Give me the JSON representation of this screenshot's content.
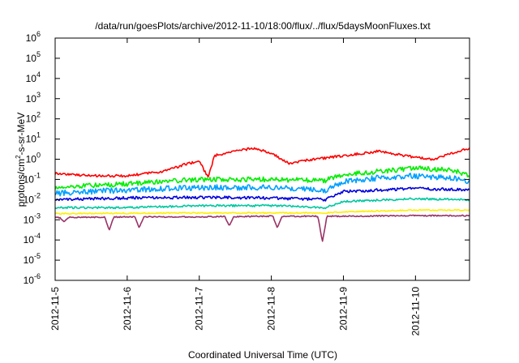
{
  "chart_data": {
    "type": "line",
    "title": "/data/run/goesPlots/archive/2012-11-10/18:00/flux/../flux/5daysMoonFluxes.txt",
    "xlabel": "Coordinated Universal Time (UTC)",
    "ylabel": {
      "base": "protons/cm",
      "sup": "2",
      "rest": "-s-sr-MeV"
    },
    "log_y": true,
    "grid": false,
    "legend": "none",
    "xlim": [
      "2012-11-05T00:00",
      "2012-11-10T18:00"
    ],
    "ylim_exponent": [
      -6,
      6
    ],
    "x_ticks": [
      "2012-11-5",
      "2012-11-6",
      "2012-11-7",
      "2012-11-8",
      "2012-11-9",
      "2012-11-10"
    ],
    "y_ticks": [
      {
        "base": "10",
        "exp": "-6"
      },
      {
        "base": "10",
        "exp": "-5"
      },
      {
        "base": "10",
        "exp": "-4"
      },
      {
        "base": "10",
        "exp": "-3"
      },
      {
        "base": "10",
        "exp": "-2"
      },
      {
        "base": "10",
        "exp": "-1"
      },
      {
        "base": "10",
        "exp": "0"
      },
      {
        "base": "10",
        "exp": "1"
      },
      {
        "base": "10",
        "exp": "2"
      },
      {
        "base": "10",
        "exp": "3"
      },
      {
        "base": "10",
        "exp": "4"
      },
      {
        "base": "10",
        "exp": "5"
      },
      {
        "base": "10",
        "exp": "6"
      }
    ],
    "series": [
      {
        "color": "#ff0000",
        "noise": 0.06,
        "dips": [],
        "points": [
          [
            "2012-11-05T00:00",
            0.2
          ],
          [
            "2012-11-05T12:00",
            0.15
          ],
          [
            "2012-11-06T00:00",
            0.15
          ],
          [
            "2012-11-06T12:00",
            0.25
          ],
          [
            "2012-11-06T20:00",
            0.6
          ],
          [
            "2012-11-07T00:00",
            0.8
          ],
          [
            "2012-11-07T03:00",
            0.12
          ],
          [
            "2012-11-07T05:00",
            1.5
          ],
          [
            "2012-11-07T12:00",
            2.5
          ],
          [
            "2012-11-07T18:00",
            3.5
          ],
          [
            "2012-11-08T00:00",
            2.0
          ],
          [
            "2012-11-08T06:00",
            0.6
          ],
          [
            "2012-11-08T12:00",
            0.9
          ],
          [
            "2012-11-09T00:00",
            1.5
          ],
          [
            "2012-11-09T12:00",
            2.5
          ],
          [
            "2012-11-10T00:00",
            1.2
          ],
          [
            "2012-11-10T06:00",
            1.0
          ],
          [
            "2012-11-10T12:00",
            2.0
          ],
          [
            "2012-11-10T18:00",
            3.5
          ]
        ]
      },
      {
        "color": "#00ee00",
        "noise": 0.12,
        "dips": [],
        "points": [
          [
            "2012-11-05T00:00",
            0.04
          ],
          [
            "2012-11-05T12:00",
            0.05
          ],
          [
            "2012-11-06T00:00",
            0.06
          ],
          [
            "2012-11-06T12:00",
            0.08
          ],
          [
            "2012-11-07T00:00",
            0.1
          ],
          [
            "2012-11-08T00:00",
            0.1
          ],
          [
            "2012-11-08T18:00",
            0.09
          ],
          [
            "2012-11-09T00:00",
            0.18
          ],
          [
            "2012-11-09T12:00",
            0.25
          ],
          [
            "2012-11-10T00:00",
            0.35
          ],
          [
            "2012-11-10T12:00",
            0.3
          ],
          [
            "2012-11-10T18:00",
            0.15
          ]
        ]
      },
      {
        "color": "#00a0ff",
        "noise": 0.14,
        "dips": [],
        "points": [
          [
            "2012-11-05T00:00",
            0.02
          ],
          [
            "2012-11-05T12:00",
            0.025
          ],
          [
            "2012-11-06T00:00",
            0.03
          ],
          [
            "2012-11-07T00:00",
            0.04
          ],
          [
            "2012-11-08T00:00",
            0.04
          ],
          [
            "2012-11-08T18:00",
            0.03
          ],
          [
            "2012-11-09T00:00",
            0.08
          ],
          [
            "2012-11-09T12:00",
            0.12
          ],
          [
            "2012-11-10T00:00",
            0.15
          ],
          [
            "2012-11-10T12:00",
            0.12
          ],
          [
            "2012-11-10T18:00",
            0.07
          ]
        ]
      },
      {
        "color": "#0000dd",
        "noise": 0.07,
        "dips": [],
        "points": [
          [
            "2012-11-05T00:00",
            0.01
          ],
          [
            "2012-11-06T00:00",
            0.012
          ],
          [
            "2012-11-07T00:00",
            0.013
          ],
          [
            "2012-11-08T00:00",
            0.012
          ],
          [
            "2012-11-08T18:00",
            0.01
          ],
          [
            "2012-11-09T00:00",
            0.025
          ],
          [
            "2012-11-10T00:00",
            0.035
          ],
          [
            "2012-11-10T18:00",
            0.03
          ]
        ]
      },
      {
        "color": "#00c8a0",
        "noise": 0.05,
        "dips": [],
        "points": [
          [
            "2012-11-05T00:00",
            0.004
          ],
          [
            "2012-11-06T00:00",
            0.004
          ],
          [
            "2012-11-07T00:00",
            0.005
          ],
          [
            "2012-11-08T00:00",
            0.005
          ],
          [
            "2012-11-08T18:00",
            0.004
          ],
          [
            "2012-11-09T00:00",
            0.008
          ],
          [
            "2012-11-10T00:00",
            0.011
          ],
          [
            "2012-11-10T18:00",
            0.01
          ]
        ]
      },
      {
        "color": "#ffee00",
        "noise": 0.03,
        "dips": [],
        "points": [
          [
            "2012-11-05T00:00",
            0.002
          ],
          [
            "2012-11-07T00:00",
            0.0022
          ],
          [
            "2012-11-08T18:00",
            0.0022
          ],
          [
            "2012-11-09T00:00",
            0.0025
          ],
          [
            "2012-11-10T00:00",
            0.003
          ],
          [
            "2012-11-10T18:00",
            0.003
          ]
        ]
      },
      {
        "color": "#993366",
        "noise": 0.03,
        "dips": [
          [
            "2012-11-05T03:00",
            0.0008
          ],
          [
            "2012-11-05T18:00",
            0.0003
          ],
          [
            "2012-11-06T04:00",
            0.0004
          ],
          [
            "2012-11-07T10:00",
            0.0005
          ],
          [
            "2012-11-08T02:00",
            0.0004
          ],
          [
            "2012-11-08T17:00",
            8e-05
          ]
        ],
        "points": [
          [
            "2012-11-05T00:00",
            0.0013
          ],
          [
            "2012-11-06T00:00",
            0.0014
          ],
          [
            "2012-11-07T00:00",
            0.0014
          ],
          [
            "2012-11-08T00:00",
            0.0015
          ],
          [
            "2012-11-09T00:00",
            0.0015
          ],
          [
            "2012-11-10T00:00",
            0.0016
          ],
          [
            "2012-11-10T18:00",
            0.0016
          ]
        ]
      }
    ]
  }
}
